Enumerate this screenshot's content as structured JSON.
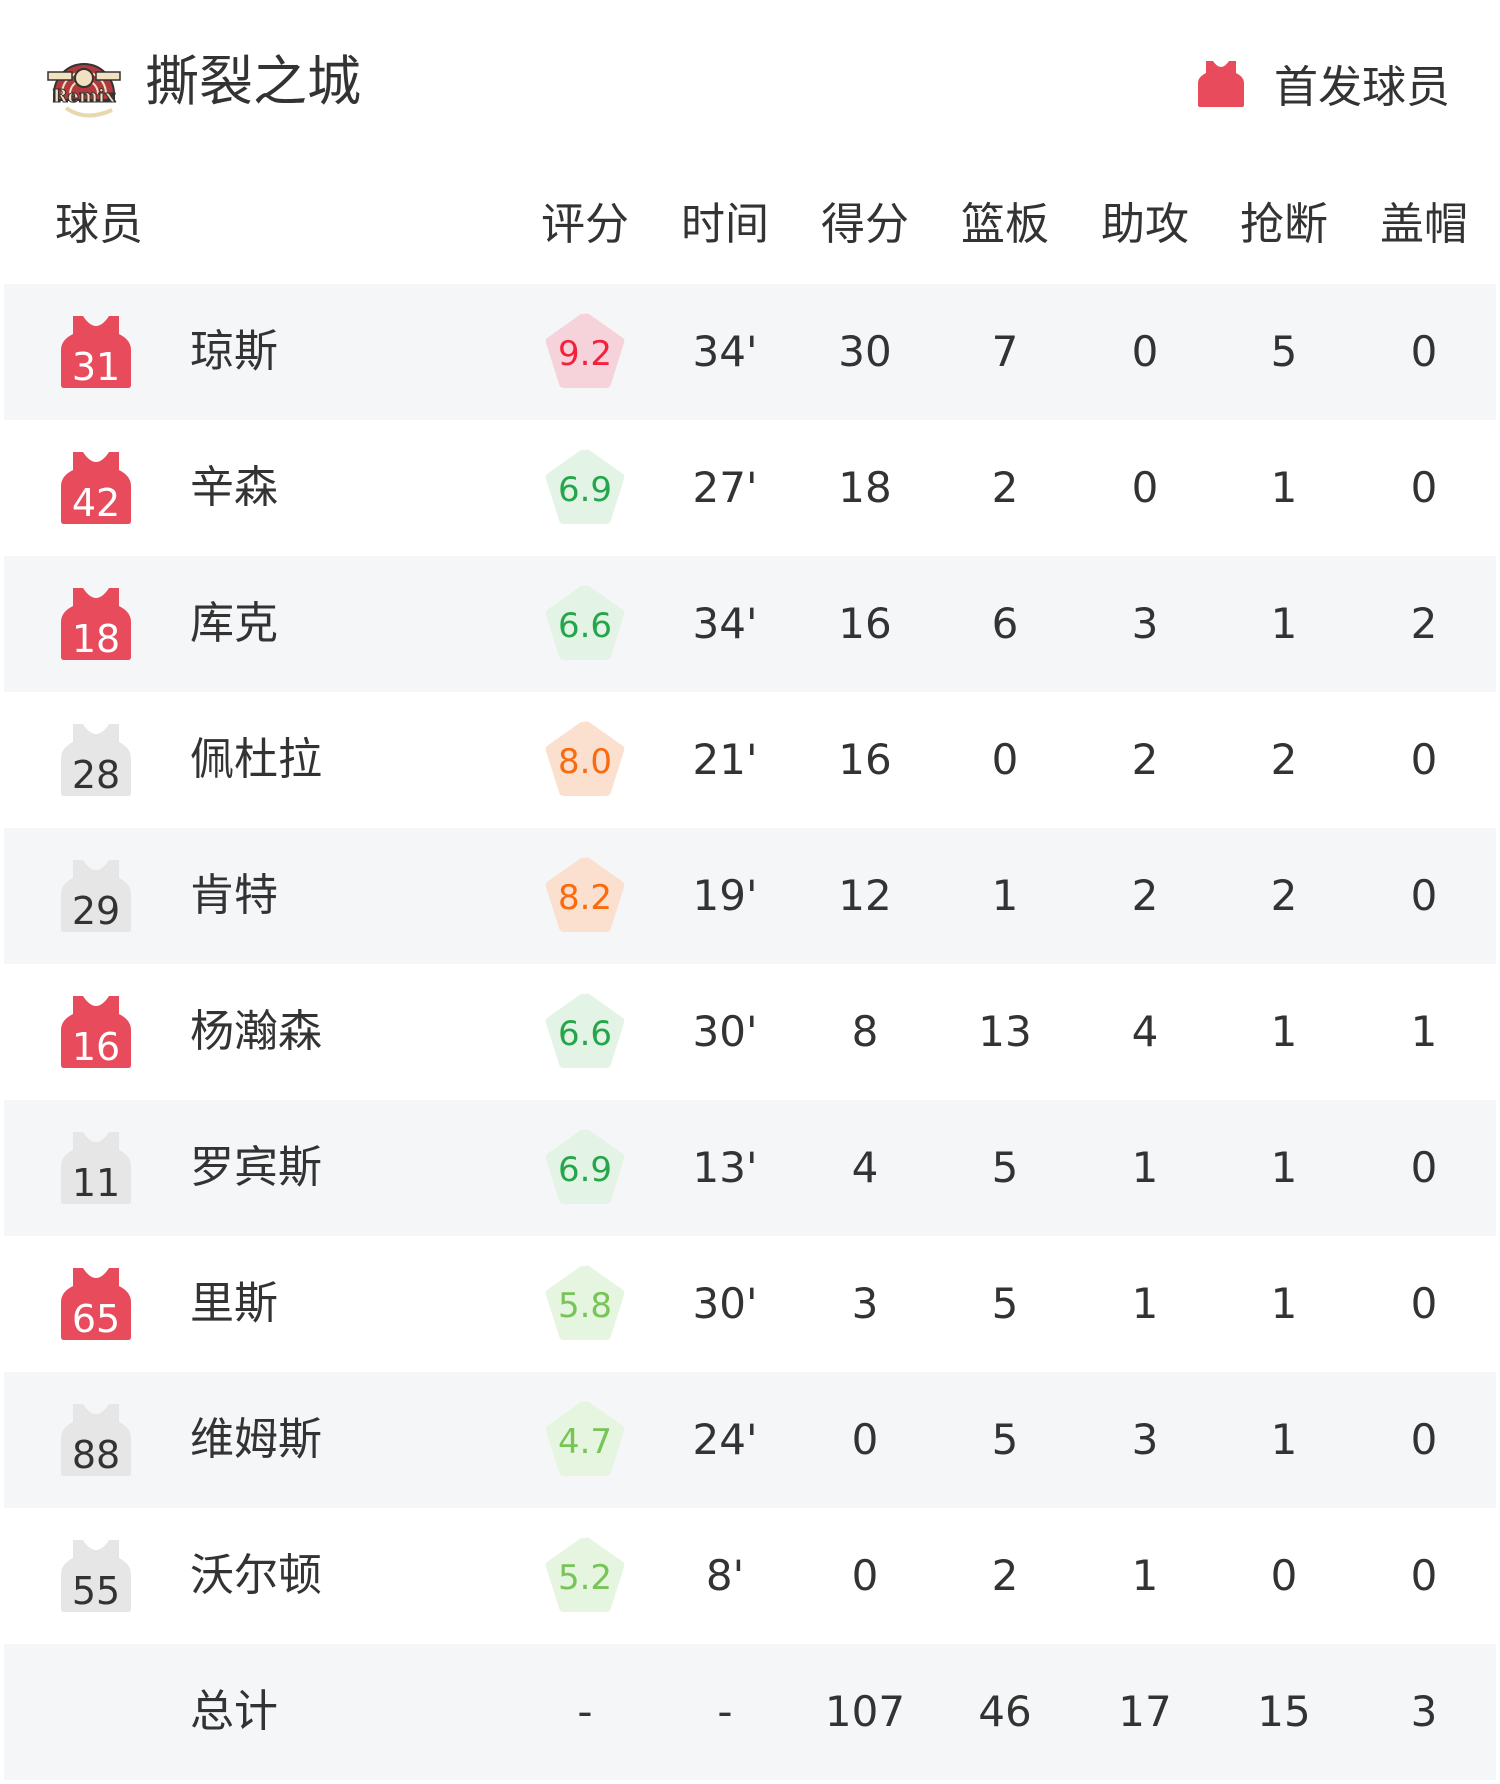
{
  "header": {
    "team_name": "撕裂之城",
    "logo_text": "RIP CITY Remix",
    "legend_label": "首发球员"
  },
  "columns": [
    "球员",
    "评分",
    "时间",
    "得分",
    "篮板",
    "助攻",
    "抢断",
    "盖帽"
  ],
  "colors": {
    "starter_jersey": "#e84b5b",
    "bench_jersey": "#e6e6e6",
    "rating_red": "#f4213c",
    "rating_green": "#25a64a",
    "rating_light_green": "#77c457",
    "rating_orange": "#fb6a0c"
  },
  "players": [
    {
      "number": "31",
      "name": "琼斯",
      "starter": true,
      "rating": "9.2",
      "rating_tier": "red",
      "min": "34'",
      "pts": "30",
      "reb": "7",
      "ast": "0",
      "stl": "5",
      "blk": "0"
    },
    {
      "number": "42",
      "name": "辛森",
      "starter": true,
      "rating": "6.9",
      "rating_tier": "green",
      "min": "27'",
      "pts": "18",
      "reb": "2",
      "ast": "0",
      "stl": "1",
      "blk": "0"
    },
    {
      "number": "18",
      "name": "库克",
      "starter": true,
      "rating": "6.6",
      "rating_tier": "green",
      "min": "34'",
      "pts": "16",
      "reb": "6",
      "ast": "3",
      "stl": "1",
      "blk": "2"
    },
    {
      "number": "28",
      "name": "佩杜拉",
      "starter": false,
      "rating": "8.0",
      "rating_tier": "orange",
      "min": "21'",
      "pts": "16",
      "reb": "0",
      "ast": "2",
      "stl": "2",
      "blk": "0"
    },
    {
      "number": "29",
      "name": "肯特",
      "starter": false,
      "rating": "8.2",
      "rating_tier": "orange",
      "min": "19'",
      "pts": "12",
      "reb": "1",
      "ast": "2",
      "stl": "2",
      "blk": "0"
    },
    {
      "number": "16",
      "name": "杨瀚森",
      "starter": true,
      "rating": "6.6",
      "rating_tier": "green",
      "min": "30'",
      "pts": "8",
      "reb": "13",
      "ast": "4",
      "stl": "1",
      "blk": "1"
    },
    {
      "number": "11",
      "name": "罗宾斯",
      "starter": false,
      "rating": "6.9",
      "rating_tier": "green",
      "min": "13'",
      "pts": "4",
      "reb": "5",
      "ast": "1",
      "stl": "1",
      "blk": "0"
    },
    {
      "number": "65",
      "name": "里斯",
      "starter": true,
      "rating": "5.8",
      "rating_tier": "light_green",
      "min": "30'",
      "pts": "3",
      "reb": "5",
      "ast": "1",
      "stl": "1",
      "blk": "0"
    },
    {
      "number": "88",
      "name": "维姆斯",
      "starter": false,
      "rating": "4.7",
      "rating_tier": "light_green",
      "min": "24'",
      "pts": "0",
      "reb": "5",
      "ast": "3",
      "stl": "1",
      "blk": "0"
    },
    {
      "number": "55",
      "name": "沃尔顿",
      "starter": false,
      "rating": "5.2",
      "rating_tier": "light_green",
      "min": "8'",
      "pts": "0",
      "reb": "2",
      "ast": "1",
      "stl": "0",
      "blk": "0"
    }
  ],
  "totals": {
    "label": "总计",
    "rating": "-",
    "min": "-",
    "pts": "107",
    "reb": "46",
    "ast": "17",
    "stl": "15",
    "blk": "3"
  }
}
